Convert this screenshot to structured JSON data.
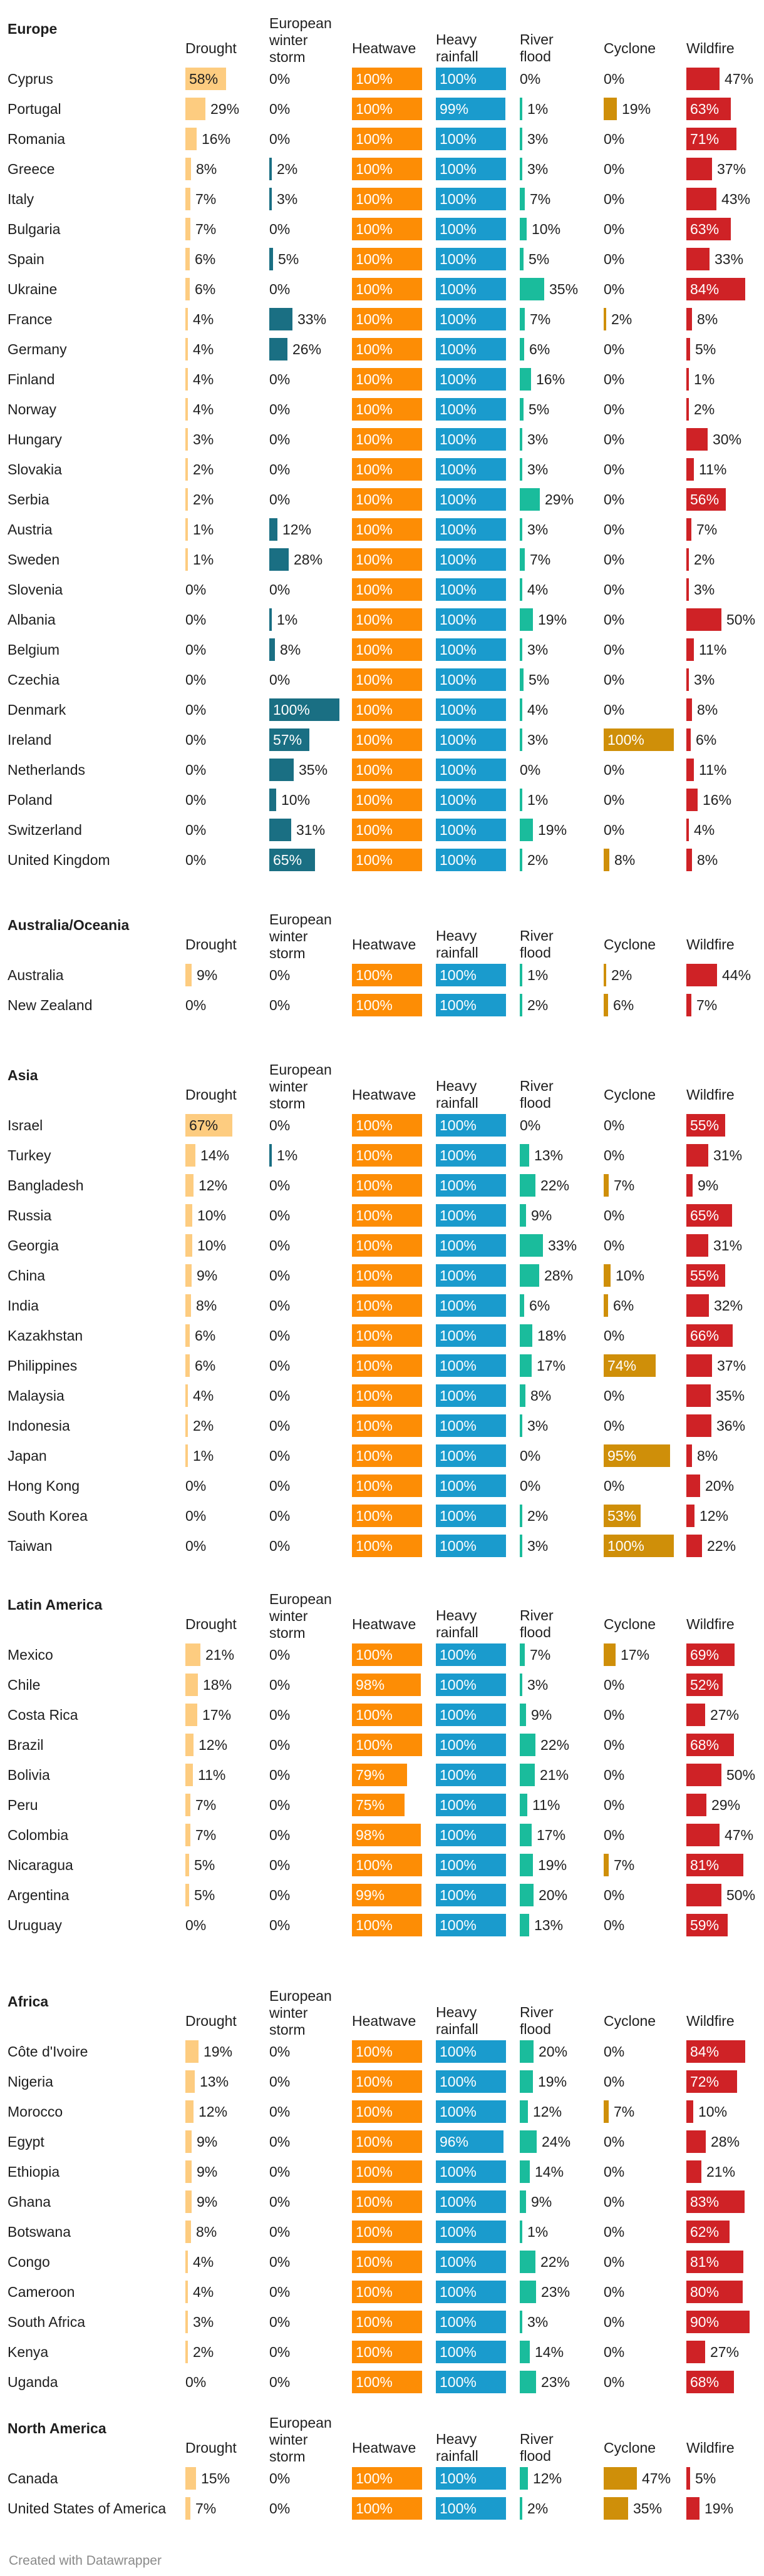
{
  "chart_data": {
    "type": "table",
    "subtype": "bar-table",
    "columns": [
      "Drought",
      "European\nwinter\nstorm",
      "Heatwave",
      "Heavy\nrainfall",
      "River\nflood",
      "Cyclone",
      "Wildfire"
    ],
    "column_colors": [
      "#fdcc80",
      "#1a6f83",
      "#fd8d05",
      "#1a9bcd",
      "#1abc9c",
      "#cf8f09",
      "#cf2226"
    ],
    "unit": "%",
    "sections": [
      {
        "title": "Europe",
        "rows": [
          {
            "name": "Cyprus",
            "values": [
              58,
              0,
              100,
              100,
              0,
              0,
              47
            ]
          },
          {
            "name": "Portugal",
            "values": [
              29,
              0,
              100,
              99,
              1,
              19,
              63
            ]
          },
          {
            "name": "Romania",
            "values": [
              16,
              0,
              100,
              100,
              3,
              0,
              71
            ]
          },
          {
            "name": "Greece",
            "values": [
              8,
              2,
              100,
              100,
              3,
              0,
              37
            ]
          },
          {
            "name": "Italy",
            "values": [
              7,
              3,
              100,
              100,
              7,
              0,
              43
            ]
          },
          {
            "name": "Bulgaria",
            "values": [
              7,
              0,
              100,
              100,
              10,
              0,
              63
            ]
          },
          {
            "name": "Spain",
            "values": [
              6,
              5,
              100,
              100,
              5,
              0,
              33
            ]
          },
          {
            "name": "Ukraine",
            "values": [
              6,
              0,
              100,
              100,
              35,
              0,
              84
            ]
          },
          {
            "name": "France",
            "values": [
              4,
              33,
              100,
              100,
              7,
              2,
              8
            ]
          },
          {
            "name": "Germany",
            "values": [
              4,
              26,
              100,
              100,
              6,
              0,
              5
            ]
          },
          {
            "name": "Finland",
            "values": [
              4,
              0,
              100,
              100,
              16,
              0,
              1
            ]
          },
          {
            "name": "Norway",
            "values": [
              4,
              0,
              100,
              100,
              5,
              0,
              2
            ]
          },
          {
            "name": "Hungary",
            "values": [
              3,
              0,
              100,
              100,
              3,
              0,
              30
            ]
          },
          {
            "name": "Slovakia",
            "values": [
              2,
              0,
              100,
              100,
              3,
              0,
              11
            ]
          },
          {
            "name": "Serbia",
            "values": [
              2,
              0,
              100,
              100,
              29,
              0,
              56
            ]
          },
          {
            "name": "Austria",
            "values": [
              1,
              12,
              100,
              100,
              3,
              0,
              7
            ]
          },
          {
            "name": "Sweden",
            "values": [
              1,
              28,
              100,
              100,
              7,
              0,
              2
            ]
          },
          {
            "name": "Slovenia",
            "values": [
              0,
              0,
              100,
              100,
              4,
              0,
              3
            ]
          },
          {
            "name": "Albania",
            "values": [
              0,
              1,
              100,
              100,
              19,
              0,
              50
            ]
          },
          {
            "name": "Belgium",
            "values": [
              0,
              8,
              100,
              100,
              3,
              0,
              11
            ]
          },
          {
            "name": "Czechia",
            "values": [
              0,
              0,
              100,
              100,
              5,
              0,
              3
            ]
          },
          {
            "name": "Denmark",
            "values": [
              0,
              100,
              100,
              100,
              4,
              0,
              8
            ]
          },
          {
            "name": "Ireland",
            "values": [
              0,
              57,
              100,
              100,
              3,
              100,
              6
            ]
          },
          {
            "name": "Netherlands",
            "values": [
              0,
              35,
              100,
              100,
              0,
              0,
              11
            ]
          },
          {
            "name": "Poland",
            "values": [
              0,
              10,
              100,
              100,
              1,
              0,
              16
            ]
          },
          {
            "name": "Switzerland",
            "values": [
              0,
              31,
              100,
              100,
              19,
              0,
              4
            ]
          },
          {
            "name": "United Kingdom",
            "values": [
              0,
              65,
              100,
              100,
              2,
              8,
              8
            ]
          }
        ]
      },
      {
        "title": "Australia/Oceania",
        "rows": [
          {
            "name": "Australia",
            "values": [
              9,
              0,
              100,
              100,
              1,
              2,
              44
            ]
          },
          {
            "name": "New Zealand",
            "values": [
              0,
              0,
              100,
              100,
              2,
              6,
              7
            ]
          }
        ]
      },
      {
        "title": "Asia",
        "rows": [
          {
            "name": "Israel",
            "values": [
              67,
              0,
              100,
              100,
              0,
              0,
              55
            ]
          },
          {
            "name": "Turkey",
            "values": [
              14,
              1,
              100,
              100,
              13,
              0,
              31
            ]
          },
          {
            "name": "Bangladesh",
            "values": [
              12,
              0,
              100,
              100,
              22,
              7,
              9
            ]
          },
          {
            "name": "Russia",
            "values": [
              10,
              0,
              100,
              100,
              9,
              0,
              65
            ]
          },
          {
            "name": "Georgia",
            "values": [
              10,
              0,
              100,
              100,
              33,
              0,
              31
            ]
          },
          {
            "name": "China",
            "values": [
              9,
              0,
              100,
              100,
              28,
              10,
              55
            ]
          },
          {
            "name": "India",
            "values": [
              8,
              0,
              100,
              100,
              6,
              6,
              32
            ]
          },
          {
            "name": "Kazakhstan",
            "values": [
              6,
              0,
              100,
              100,
              18,
              0,
              66
            ]
          },
          {
            "name": "Philippines",
            "values": [
              6,
              0,
              100,
              100,
              17,
              74,
              37
            ]
          },
          {
            "name": "Malaysia",
            "values": [
              4,
              0,
              100,
              100,
              8,
              0,
              35
            ]
          },
          {
            "name": "Indonesia",
            "values": [
              2,
              0,
              100,
              100,
              3,
              0,
              36
            ]
          },
          {
            "name": "Japan",
            "values": [
              1,
              0,
              100,
              100,
              0,
              95,
              8
            ]
          },
          {
            "name": "Hong Kong",
            "values": [
              0,
              0,
              100,
              100,
              0,
              0,
              20
            ]
          },
          {
            "name": "South Korea",
            "values": [
              0,
              0,
              100,
              100,
              2,
              53,
              12
            ]
          },
          {
            "name": "Taiwan",
            "values": [
              0,
              0,
              100,
              100,
              3,
              100,
              22
            ]
          }
        ]
      },
      {
        "title": "Latin America",
        "rows": [
          {
            "name": "Mexico",
            "values": [
              21,
              0,
              100,
              100,
              7,
              17,
              69
            ]
          },
          {
            "name": "Chile",
            "values": [
              18,
              0,
              98,
              100,
              3,
              0,
              52
            ]
          },
          {
            "name": "Costa Rica",
            "values": [
              17,
              0,
              100,
              100,
              9,
              0,
              27
            ]
          },
          {
            "name": "Brazil",
            "values": [
              12,
              0,
              100,
              100,
              22,
              0,
              68
            ]
          },
          {
            "name": "Bolivia",
            "values": [
              11,
              0,
              79,
              100,
              21,
              0,
              50
            ]
          },
          {
            "name": "Peru",
            "values": [
              7,
              0,
              75,
              100,
              11,
              0,
              29
            ]
          },
          {
            "name": "Colombia",
            "values": [
              7,
              0,
              98,
              100,
              17,
              0,
              47
            ]
          },
          {
            "name": "Nicaragua",
            "values": [
              5,
              0,
              100,
              100,
              19,
              7,
              81
            ]
          },
          {
            "name": "Argentina",
            "values": [
              5,
              0,
              99,
              100,
              20,
              0,
              50
            ]
          },
          {
            "name": "Uruguay",
            "values": [
              0,
              0,
              100,
              100,
              13,
              0,
              59
            ]
          }
        ]
      },
      {
        "title": "Africa",
        "rows": [
          {
            "name": "Côte d'Ivoire",
            "values": [
              19,
              0,
              100,
              100,
              20,
              0,
              84
            ]
          },
          {
            "name": "Nigeria",
            "values": [
              13,
              0,
              100,
              100,
              19,
              0,
              72
            ]
          },
          {
            "name": "Morocco",
            "values": [
              12,
              0,
              100,
              100,
              12,
              7,
              10
            ]
          },
          {
            "name": "Egypt",
            "values": [
              9,
              0,
              100,
              96,
              24,
              0,
              28
            ]
          },
          {
            "name": "Ethiopia",
            "values": [
              9,
              0,
              100,
              100,
              14,
              0,
              21
            ]
          },
          {
            "name": "Ghana",
            "values": [
              9,
              0,
              100,
              100,
              9,
              0,
              83
            ]
          },
          {
            "name": "Botswana",
            "values": [
              8,
              0,
              100,
              100,
              1,
              0,
              62
            ]
          },
          {
            "name": "Congo",
            "values": [
              4,
              0,
              100,
              100,
              22,
              0,
              81
            ]
          },
          {
            "name": "Cameroon",
            "values": [
              4,
              0,
              100,
              100,
              23,
              0,
              80
            ]
          },
          {
            "name": "South Africa",
            "values": [
              3,
              0,
              100,
              100,
              3,
              0,
              90
            ]
          },
          {
            "name": "Kenya",
            "values": [
              2,
              0,
              100,
              100,
              14,
              0,
              27
            ]
          },
          {
            "name": "Uganda",
            "values": [
              0,
              0,
              100,
              100,
              23,
              0,
              68
            ]
          }
        ]
      },
      {
        "title": "North America",
        "rows": [
          {
            "name": "Canada",
            "values": [
              15,
              0,
              100,
              100,
              12,
              47,
              5
            ]
          },
          {
            "name": "United States of America",
            "values": [
              7,
              0,
              100,
              100,
              2,
              35,
              19
            ]
          }
        ]
      }
    ]
  },
  "footer": {
    "text": "Created with Datawrapper"
  }
}
